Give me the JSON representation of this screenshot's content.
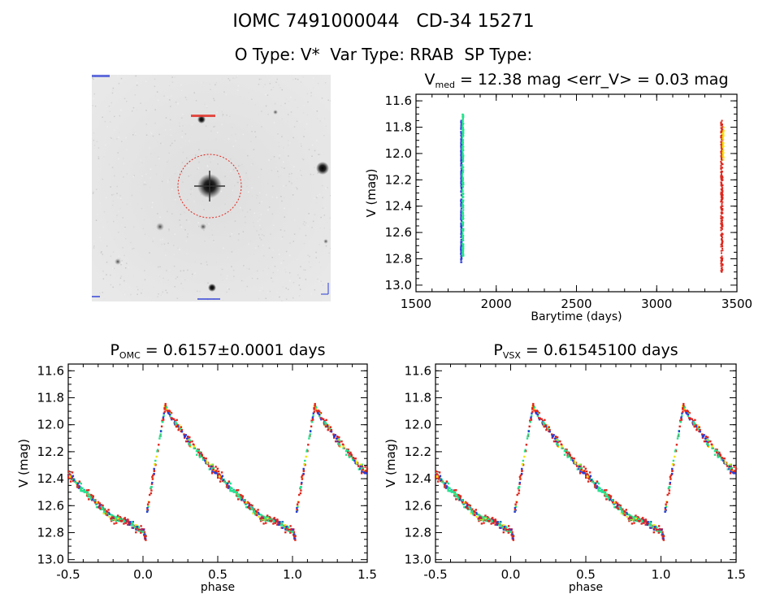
{
  "header": {
    "title": "IOMC 7491000044   CD-34 15271",
    "subtitle": "O Type: V*  Var Type: RRAB  SP Type:"
  },
  "colors": {
    "series": [
      "#2a3bd6",
      "#26e28e",
      "#e0261d",
      "#f2e600"
    ]
  },
  "chart_data": [
    {
      "id": "sky_image",
      "type": "image",
      "top_label": "",
      "bottom_label": "",
      "marker": "red dashed circle around target star"
    },
    {
      "id": "lightcurve_time",
      "type": "scatter",
      "title_main": "V",
      "title_sub": "med",
      "title_rest": " = 12.38 mag <err_V> = 0.03 mag",
      "xlabel": "Barytime (days)",
      "ylabel": "V (mag)",
      "xlim": [
        1500,
        3500
      ],
      "ylim": [
        13.05,
        11.55
      ],
      "xticks": [
        "1500",
        "2000",
        "2500",
        "3000",
        "3500"
      ],
      "yticks": [
        "11.6",
        "11.8",
        "12.0",
        "12.2",
        "12.4",
        "12.6",
        "12.8",
        "13.0"
      ],
      "series": [
        {
          "color": "#2a3bd6",
          "x": [
            1780,
            1785
          ],
          "ylim": [
            11.75,
            12.83
          ]
        },
        {
          "color": "#26e28e",
          "x": [
            1788,
            1796
          ],
          "ylim": [
            11.7,
            12.8
          ]
        },
        {
          "color": "#e0261d",
          "x": [
            3400,
            3412
          ],
          "ylim": [
            11.75,
            12.9
          ]
        },
        {
          "color": "#f2e600",
          "x": [
            3412,
            3418
          ],
          "ylim": [
            11.8,
            12.05
          ]
        }
      ]
    },
    {
      "id": "phased_omc",
      "type": "scatter",
      "title_main": "P",
      "title_sub": "OMC",
      "title_rest": " = 0.6157±0.0001 days",
      "xlabel": "phase",
      "ylabel": "V (mag)",
      "xlim": [
        -0.5,
        1.5
      ],
      "ylim": [
        13.02,
        11.55
      ],
      "xticks": [
        "-0.5",
        "0.0",
        "0.5",
        "1.0",
        "1.5"
      ],
      "yticks": [
        "11.6",
        "11.8",
        "12.0",
        "12.2",
        "12.4",
        "12.6",
        "12.8",
        "13.0"
      ],
      "curve": {
        "max_phase": 0.15,
        "max_mag": 11.85,
        "min_mag": 12.7,
        "rise_start": 0.0,
        "rise_start_mag": 12.82
      }
    },
    {
      "id": "phased_vsx",
      "type": "scatter",
      "title_main": "P",
      "title_sub": "VSX",
      "title_rest": " = 0.61545100 days",
      "xlabel": "phase",
      "ylabel": "V (mag)",
      "xlim": [
        -0.5,
        1.5
      ],
      "ylim": [
        13.02,
        11.55
      ],
      "xticks": [
        "-0.5",
        "0.0",
        "0.5",
        "1.0",
        "1.5"
      ],
      "yticks": [
        "11.6",
        "11.8",
        "12.0",
        "12.2",
        "12.4",
        "12.6",
        "12.8",
        "13.0"
      ],
      "curve": {
        "max_phase": 0.15,
        "max_mag": 11.85,
        "min_mag": 12.7,
        "rise_start": 0.0,
        "rise_start_mag": 12.82
      }
    }
  ]
}
